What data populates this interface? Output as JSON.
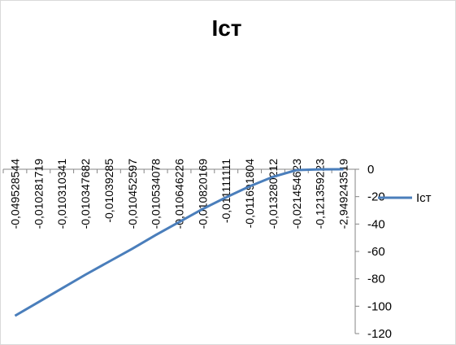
{
  "chart_data": {
    "type": "line",
    "title": "Iст",
    "categories": [
      "-0,049528544",
      "-0,010281719",
      "-0,010310341",
      "-0,010347682",
      "-0,01039285",
      "-0,010452597",
      "-0,010534078",
      "-0,010646226",
      "-0,010820169",
      "-0,011111111",
      "-0,011691804",
      "-0,013280212",
      "-0,021454623",
      "-0,121359223",
      "-2,949243519"
    ],
    "series": [
      {
        "name": "Iст",
        "color": "#4a7ebb",
        "values": [
          -107,
          -97,
          -87,
          -77,
          -67.5,
          -58,
          -48,
          -38.5,
          -29,
          -20.5,
          -12.5,
          -5.5,
          -0.6,
          -0.1,
          0
        ]
      }
    ],
    "ylim": [
      -120,
      0
    ],
    "yticks": [
      0,
      -20,
      -40,
      -60,
      -80,
      -100,
      -120
    ],
    "legend": "right"
  }
}
